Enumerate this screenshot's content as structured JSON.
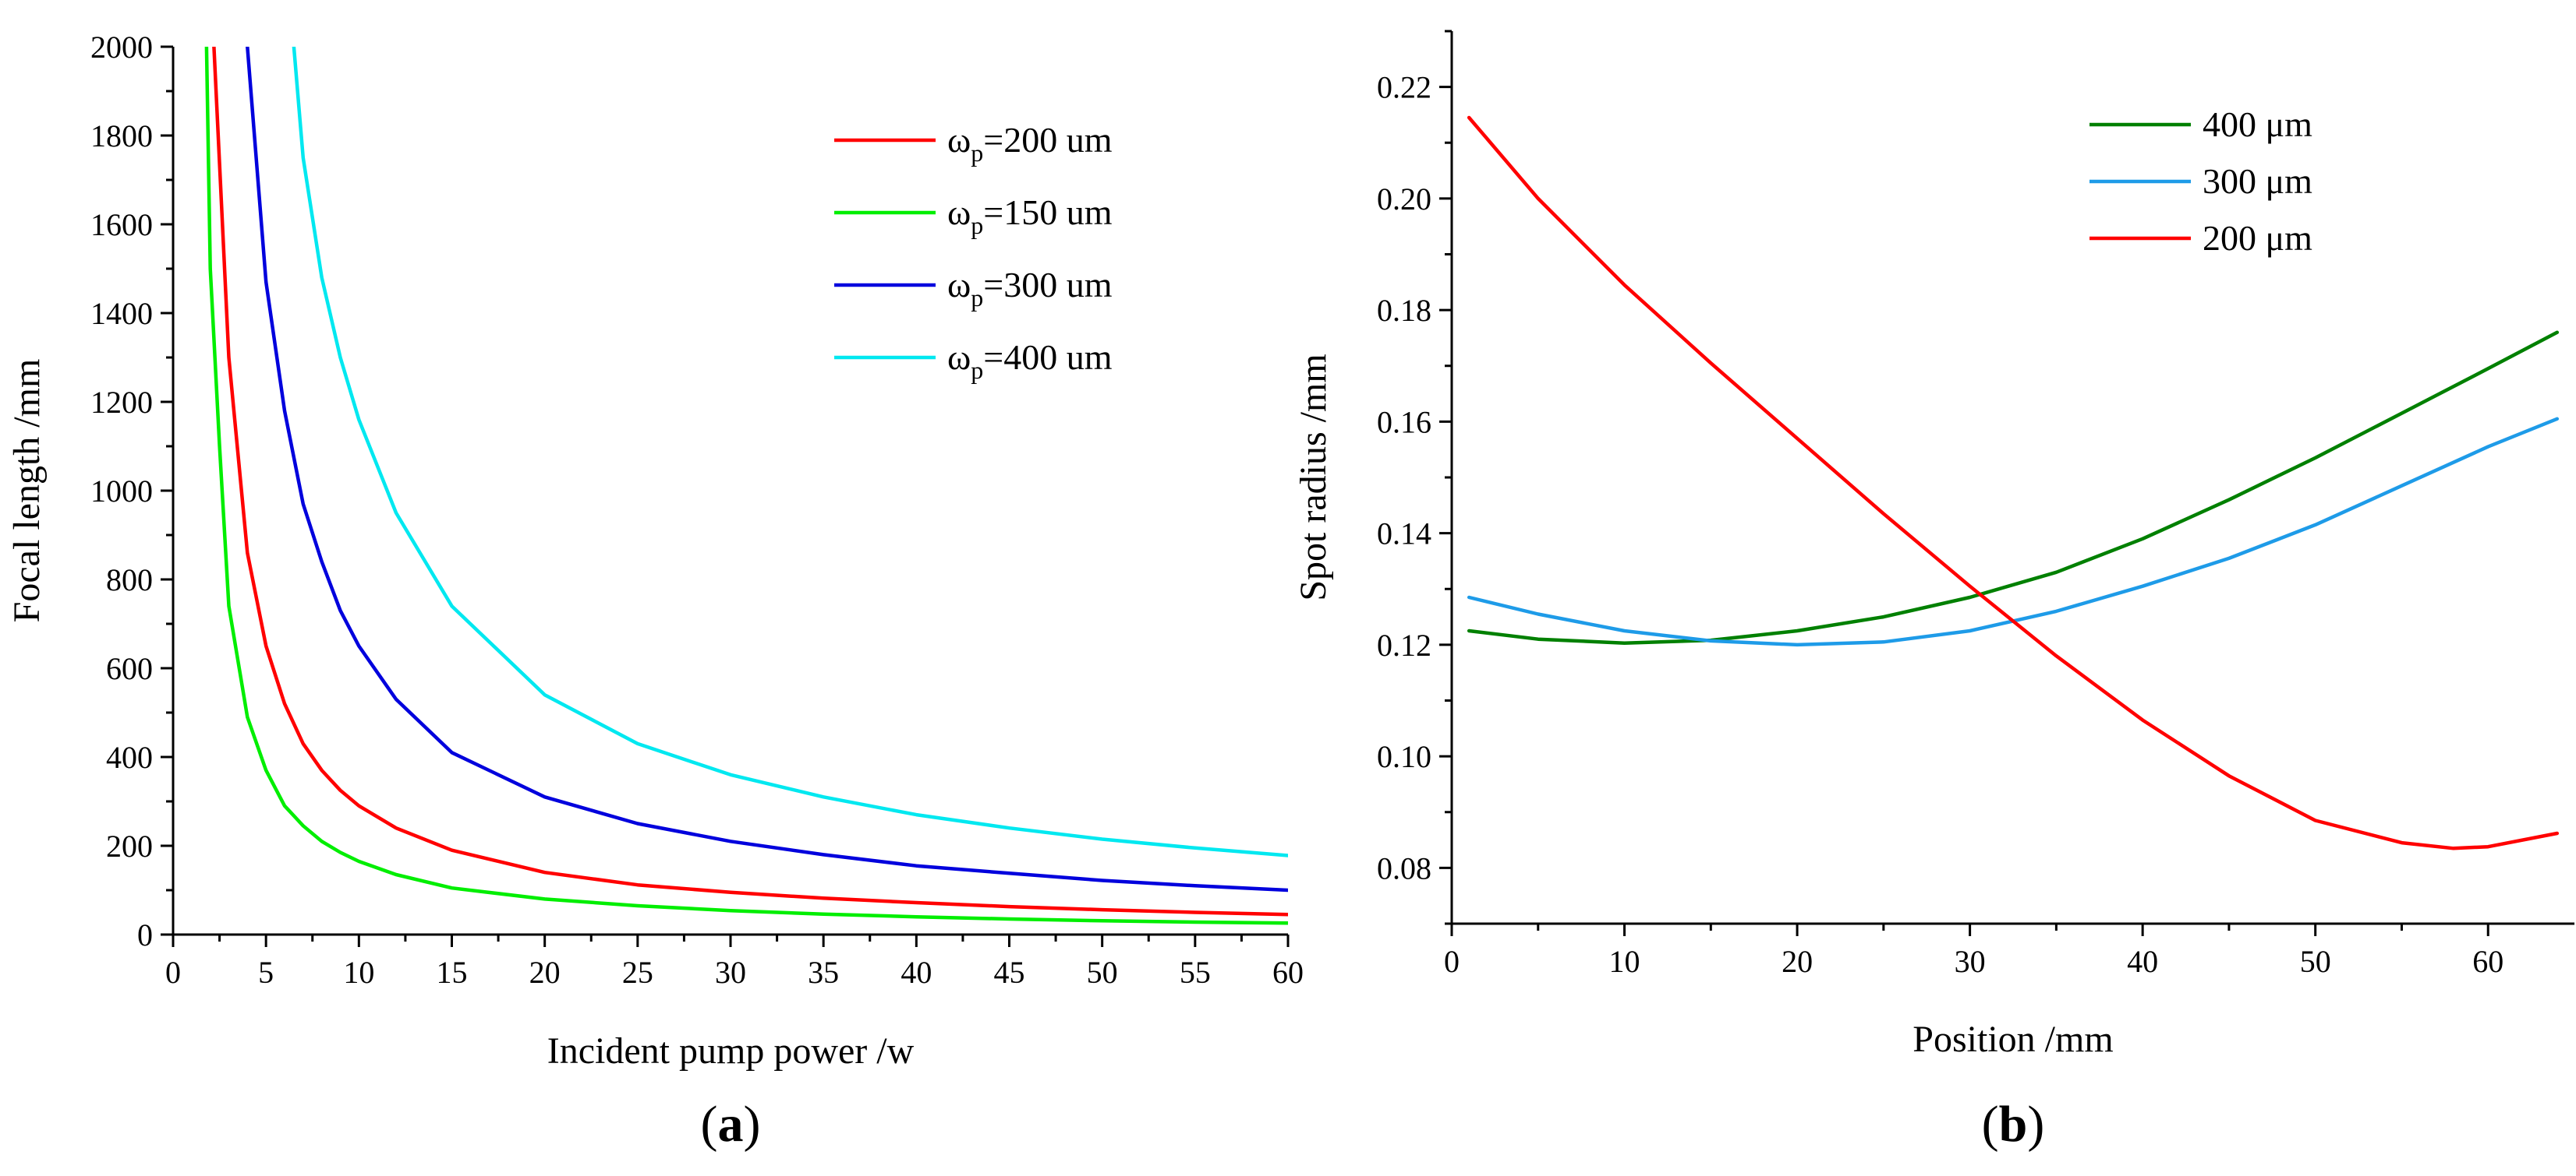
{
  "chart_data": [
    {
      "id": "a",
      "type": "line",
      "panel_label": "a",
      "xlabel": "Incident pump power /w",
      "ylabel": "Focal length /mm",
      "xlim": [
        0,
        60
      ],
      "ylim": [
        0,
        2000
      ],
      "xticks": [
        0,
        5,
        10,
        15,
        20,
        25,
        30,
        35,
        40,
        45,
        50,
        55,
        60
      ],
      "yticks": [
        0,
        200,
        400,
        600,
        800,
        1000,
        1200,
        1400,
        1600,
        1800,
        2000
      ],
      "legend_position": "top-right",
      "series": [
        {
          "name": "ω",
          "subscript": "p",
          "suffix": "=200 um",
          "color": "#ff0000",
          "x": [
            2.2,
            3,
            4,
            5,
            6,
            7,
            8,
            9,
            10,
            12,
            15,
            20,
            25,
            30,
            35,
            40,
            45,
            50,
            55,
            60
          ],
          "y": [
            2000,
            1300,
            860,
            650,
            520,
            430,
            370,
            325,
            290,
            240,
            190,
            140,
            112,
            95,
            82,
            72,
            63,
            56,
            50,
            45
          ]
        },
        {
          "name": "ω",
          "subscript": "p",
          "suffix": "=150 um",
          "color": "#00ee00",
          "x": [
            1.8,
            2,
            2.5,
            3,
            4,
            5,
            6,
            7,
            8,
            9,
            10,
            12,
            15,
            20,
            25,
            30,
            35,
            40,
            45,
            50,
            55,
            60
          ],
          "y": [
            2000,
            1500,
            1100,
            740,
            490,
            370,
            290,
            245,
            210,
            185,
            165,
            135,
            105,
            80,
            65,
            54,
            46,
            40,
            35,
            31,
            28,
            26
          ]
        },
        {
          "name": "ω",
          "subscript": "p",
          "suffix": "=300 um",
          "color": "#0000dd",
          "x": [
            4,
            5,
            6,
            7,
            8,
            9,
            10,
            12,
            15,
            20,
            25,
            30,
            35,
            40,
            45,
            50,
            55,
            60
          ],
          "y": [
            2000,
            1470,
            1180,
            970,
            840,
            730,
            650,
            530,
            410,
            310,
            250,
            210,
            180,
            155,
            138,
            122,
            110,
            100
          ]
        },
        {
          "name": "ω",
          "subscript": "p",
          "suffix": "=400 um",
          "color": "#00e8f0",
          "x": [
            6.5,
            7,
            8,
            9,
            10,
            12,
            15,
            20,
            25,
            30,
            35,
            40,
            45,
            50,
            55,
            60
          ],
          "y": [
            2000,
            1750,
            1480,
            1300,
            1160,
            950,
            740,
            540,
            430,
            360,
            310,
            270,
            240,
            215,
            195,
            178
          ]
        }
      ]
    },
    {
      "id": "b",
      "type": "line",
      "panel_label": "b",
      "xlabel": "Position /mm",
      "ylabel": "Spot radius /mm",
      "xlim": [
        0,
        65
      ],
      "ylim": [
        0.07,
        0.23
      ],
      "xticks": [
        0,
        10,
        20,
        30,
        40,
        50,
        60
      ],
      "yticks": [
        "0.08",
        "0.10",
        "0.12",
        "0.14",
        "0.16",
        "0.18",
        "0.20",
        "0.22"
      ],
      "legend_position": "top-right",
      "series": [
        {
          "name": "400 μm",
          "color": "#008000",
          "x": [
            1,
            5,
            10,
            15,
            20,
            25,
            30,
            35,
            40,
            45,
            50,
            55,
            60,
            64
          ],
          "y": [
            0.1225,
            0.121,
            0.1203,
            0.1208,
            0.1225,
            0.125,
            0.1285,
            0.133,
            0.139,
            0.146,
            0.1535,
            0.1615,
            0.1695,
            0.176
          ]
        },
        {
          "name": "300 μm",
          "color": "#1e9be8",
          "x": [
            1,
            5,
            10,
            15,
            20,
            25,
            30,
            35,
            40,
            45,
            50,
            55,
            60,
            64
          ],
          "y": [
            0.1285,
            0.1255,
            0.1225,
            0.1207,
            0.12,
            0.1205,
            0.1225,
            0.126,
            0.1305,
            0.1355,
            0.1415,
            0.1485,
            0.1555,
            0.1605
          ]
        },
        {
          "name": "200 μm",
          "color": "#ff0000",
          "x": [
            1,
            5,
            10,
            15,
            20,
            25,
            30,
            35,
            40,
            45,
            50,
            55,
            58,
            60,
            64
          ],
          "y": [
            0.2145,
            0.2,
            0.1845,
            0.1705,
            0.157,
            0.1435,
            0.1305,
            0.118,
            0.1065,
            0.0965,
            0.0885,
            0.0845,
            0.0835,
            0.0838,
            0.0862
          ]
        }
      ]
    }
  ]
}
